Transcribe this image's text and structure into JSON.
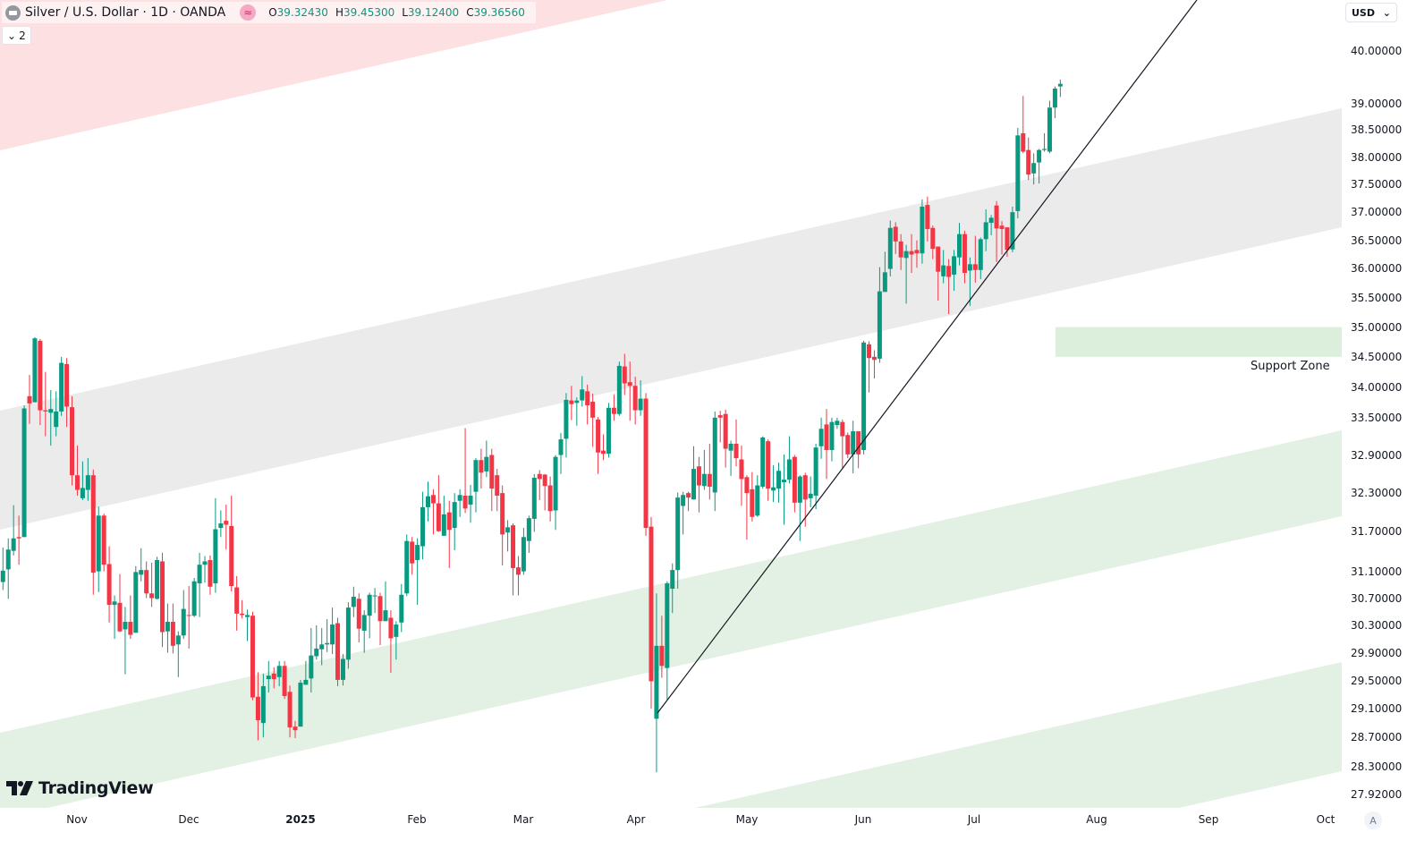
{
  "header": {
    "symbol_icon": "silver-bar-icon",
    "title": "Silver / U.S. Dollar · 1D · OANDA",
    "badge_icon": "approx-equal-icon",
    "badge_glyph": "≈",
    "ohlc": {
      "o_label": "O",
      "o": "39.32430",
      "h_label": "H",
      "h": "39.45300",
      "l_label": "L",
      "l": "39.12400",
      "c_label": "C",
      "c": "39.36560"
    },
    "collapse_glyph": "⌄",
    "collapse_count": "2"
  },
  "currency_selector": {
    "value": "USD",
    "chevron": "⌄"
  },
  "auto_scale_label": "A",
  "logo_text": "TradingView",
  "colors": {
    "up": "#089981",
    "down": "#f23645",
    "channel_gray": "#ebebeb",
    "channel_green": "#e3f1e4",
    "zone_red": "#fde0e2",
    "support_zone": "#dcefdc",
    "trendline": "#131722"
  },
  "chart_data": {
    "type": "candlestick",
    "symbol": "Silver / U.S. Dollar",
    "interval": "1D",
    "y_scale": "log",
    "grid": false,
    "price_ticks": [
      "40.00000",
      "39.00000",
      "38.50000",
      "38.00000",
      "37.50000",
      "37.00000",
      "36.50000",
      "36.00000",
      "35.50000",
      "35.00000",
      "34.50000",
      "34.00000",
      "33.50000",
      "32.90000",
      "32.30000",
      "31.70000",
      "31.10000",
      "30.70000",
      "30.30000",
      "29.90000",
      "29.50000",
      "29.10000",
      "28.70000",
      "28.30000",
      "27.92000"
    ],
    "time_ticks": [
      "Nov",
      "Dec",
      "2025",
      "Feb",
      "Mar",
      "Apr",
      "May",
      "Jun",
      "Jul",
      "Aug",
      "Sep",
      "Oct"
    ],
    "support_zone": {
      "label": "Support Zone",
      "low": 34.5,
      "high": 35.0
    },
    "candles_ohlc": [
      [
        30.94,
        31.46,
        30.82,
        31.11
      ],
      [
        31.13,
        31.6,
        30.69,
        31.43
      ],
      [
        31.41,
        32.11,
        31.34,
        31.6
      ],
      [
        31.62,
        31.95,
        31.2,
        31.6
      ],
      [
        31.62,
        33.7,
        31.62,
        33.65
      ],
      [
        33.85,
        34.2,
        33.4,
        33.73
      ],
      [
        33.75,
        34.83,
        33.75,
        34.81
      ],
      [
        34.77,
        34.8,
        33.38,
        33.62
      ],
      [
        33.62,
        34.25,
        33.2,
        33.6
      ],
      [
        33.58,
        33.95,
        33.05,
        33.64
      ],
      [
        33.35,
        33.93,
        33.2,
        33.6
      ],
      [
        33.6,
        34.5,
        33.53,
        34.4
      ],
      [
        34.38,
        34.48,
        33.35,
        33.68
      ],
      [
        33.67,
        33.85,
        32.42,
        32.58
      ],
      [
        32.58,
        33.05,
        32.26,
        32.35
      ],
      [
        32.22,
        32.8,
        32.19,
        32.38
      ],
      [
        32.35,
        32.85,
        32.18,
        32.58
      ],
      [
        32.58,
        32.67,
        30.75,
        31.08
      ],
      [
        31.1,
        32.09,
        30.79,
        31.95
      ],
      [
        31.95,
        31.98,
        31.1,
        31.2
      ],
      [
        31.21,
        31.48,
        30.34,
        30.6
      ],
      [
        30.6,
        30.74,
        30.1,
        30.65
      ],
      [
        30.63,
        31.06,
        30.2,
        30.21
      ],
      [
        30.24,
        30.57,
        29.59,
        30.35
      ],
      [
        30.35,
        30.74,
        30.1,
        30.16
      ],
      [
        30.19,
        31.18,
        30.19,
        31.09
      ],
      [
        31.05,
        31.45,
        30.95,
        31.12
      ],
      [
        31.12,
        31.25,
        30.7,
        30.77
      ],
      [
        30.77,
        31.23,
        30.57,
        30.7
      ],
      [
        30.69,
        31.32,
        30.68,
        31.27
      ],
      [
        31.25,
        31.38,
        29.98,
        30.2
      ],
      [
        30.21,
        30.62,
        29.9,
        30.35
      ],
      [
        30.35,
        30.62,
        29.89,
        30.0
      ],
      [
        30.02,
        30.21,
        29.55,
        30.15
      ],
      [
        30.15,
        30.82,
        30.1,
        30.54
      ],
      [
        30.45,
        30.88,
        29.96,
        30.44
      ],
      [
        30.44,
        31.0,
        30.42,
        30.95
      ],
      [
        30.92,
        31.38,
        30.42,
        31.2
      ],
      [
        31.2,
        31.33,
        30.93,
        31.25
      ],
      [
        31.27,
        31.34,
        30.75,
        30.87
      ],
      [
        30.92,
        32.22,
        30.78,
        31.74
      ],
      [
        31.76,
        32.03,
        31.62,
        31.83
      ],
      [
        31.87,
        32.12,
        31.43,
        31.81
      ],
      [
        31.79,
        32.26,
        30.8,
        30.88
      ],
      [
        30.86,
        31.03,
        30.22,
        30.47
      ],
      [
        30.47,
        30.67,
        30.4,
        30.45
      ],
      [
        30.42,
        30.53,
        30.07,
        30.45
      ],
      [
        30.44,
        30.5,
        29.22,
        29.26
      ],
      [
        29.27,
        29.62,
        28.66,
        28.94
      ],
      [
        28.9,
        29.6,
        28.7,
        29.42
      ],
      [
        29.52,
        29.78,
        29.33,
        29.57
      ],
      [
        29.6,
        29.69,
        29.39,
        29.52
      ],
      [
        29.55,
        29.78,
        29.42,
        29.71
      ],
      [
        29.71,
        29.78,
        29.24,
        29.28
      ],
      [
        29.34,
        29.43,
        28.7,
        28.84
      ],
      [
        28.85,
        28.93,
        28.69,
        28.8
      ],
      [
        28.85,
        29.51,
        28.85,
        29.47
      ],
      [
        29.44,
        29.78,
        29.44,
        29.51
      ],
      [
        29.53,
        30.26,
        29.33,
        29.86
      ],
      [
        29.85,
        30.3,
        29.8,
        29.96
      ],
      [
        29.95,
        30.26,
        29.72,
        30.02
      ],
      [
        30.02,
        30.39,
        29.91,
        30.04
      ],
      [
        30.02,
        30.56,
        29.88,
        30.31
      ],
      [
        30.33,
        30.41,
        29.42,
        29.51
      ],
      [
        29.51,
        29.88,
        29.43,
        29.81
      ],
      [
        29.8,
        30.64,
        29.67,
        30.56
      ],
      [
        30.57,
        30.87,
        30.42,
        30.72
      ],
      [
        30.69,
        30.77,
        30.05,
        30.25
      ],
      [
        30.22,
        30.52,
        29.9,
        30.45
      ],
      [
        30.44,
        30.78,
        30.11,
        30.75
      ],
      [
        30.73,
        30.85,
        30.48,
        30.74
      ],
      [
        30.73,
        30.78,
        30.01,
        30.36
      ],
      [
        30.36,
        30.95,
        30.36,
        30.52
      ],
      [
        30.41,
        30.52,
        29.61,
        30.11
      ],
      [
        30.13,
        30.36,
        29.8,
        30.31
      ],
      [
        30.34,
        30.91,
        30.2,
        30.75
      ],
      [
        30.77,
        31.66,
        30.73,
        31.56
      ],
      [
        31.55,
        31.62,
        31.05,
        31.22
      ],
      [
        31.27,
        31.6,
        30.6,
        31.5
      ],
      [
        31.48,
        32.32,
        31.28,
        32.08
      ],
      [
        32.08,
        32.48,
        31.86,
        32.25
      ],
      [
        32.27,
        32.36,
        31.66,
        32.14
      ],
      [
        32.14,
        32.58,
        31.7,
        31.71
      ],
      [
        31.64,
        32.26,
        31.64,
        31.97
      ],
      [
        32.0,
        32.18,
        31.15,
        31.73
      ],
      [
        31.76,
        32.3,
        31.42,
        32.16
      ],
      [
        32.18,
        32.36,
        31.93,
        32.27
      ],
      [
        32.26,
        33.33,
        31.99,
        32.06
      ],
      [
        32.12,
        32.43,
        31.84,
        32.26
      ],
      [
        32.32,
        32.85,
        32.0,
        32.82
      ],
      [
        32.82,
        33.0,
        32.37,
        32.62
      ],
      [
        32.64,
        33.13,
        32.55,
        32.87
      ],
      [
        32.9,
        33.0,
        32.02,
        32.37
      ],
      [
        32.58,
        32.68,
        32.02,
        32.26
      ],
      [
        32.3,
        32.42,
        31.19,
        31.66
      ],
      [
        31.69,
        31.88,
        31.4,
        31.77
      ],
      [
        31.8,
        31.83,
        30.74,
        31.15
      ],
      [
        31.16,
        31.33,
        30.74,
        31.05
      ],
      [
        31.1,
        31.76,
        31.05,
        31.62
      ],
      [
        31.56,
        31.95,
        31.38,
        31.91
      ],
      [
        31.9,
        32.6,
        31.7,
        32.54
      ],
      [
        32.6,
        32.66,
        32.19,
        32.52
      ],
      [
        32.59,
        32.6,
        32.03,
        32.41
      ],
      [
        32.42,
        32.56,
        31.86,
        32.02
      ],
      [
        32.03,
        32.9,
        31.73,
        32.87
      ],
      [
        32.9,
        33.25,
        32.6,
        33.15
      ],
      [
        33.16,
        33.9,
        32.86,
        33.79
      ],
      [
        33.78,
        34.02,
        33.46,
        33.72
      ],
      [
        33.74,
        33.83,
        33.37,
        33.78
      ],
      [
        33.78,
        34.18,
        33.68,
        33.96
      ],
      [
        33.93,
        34.04,
        33.39,
        33.7
      ],
      [
        33.76,
        33.89,
        33.03,
        33.5
      ],
      [
        33.47,
        33.51,
        32.6,
        32.94
      ],
      [
        32.97,
        33.23,
        32.82,
        32.92
      ],
      [
        32.92,
        33.74,
        32.86,
        33.66
      ],
      [
        33.66,
        33.88,
        33.45,
        33.56
      ],
      [
        33.56,
        34.42,
        33.53,
        34.35
      ],
      [
        34.34,
        34.55,
        33.87,
        34.06
      ],
      [
        34.08,
        34.42,
        33.45,
        34.02
      ],
      [
        34.02,
        34.17,
        33.39,
        33.62
      ],
      [
        33.62,
        34.11,
        33.53,
        33.81
      ],
      [
        33.81,
        33.9,
        31.64,
        31.76
      ],
      [
        31.78,
        31.93,
        29.1,
        29.49
      ],
      [
        28.96,
        30.77,
        28.22,
        30.0
      ],
      [
        30.0,
        30.44,
        29.54,
        29.71
      ],
      [
        29.68,
        30.95,
        29.23,
        30.92
      ],
      [
        30.84,
        31.22,
        30.48,
        31.12
      ],
      [
        31.12,
        32.31,
        30.84,
        32.23
      ],
      [
        32.1,
        32.32,
        31.66,
        32.27
      ],
      [
        32.3,
        32.32,
        32.02,
        32.23
      ],
      [
        32.2,
        33.04,
        32.2,
        32.68
      ],
      [
        32.72,
        32.87,
        32.0,
        32.42
      ],
      [
        32.41,
        32.98,
        32.35,
        32.6
      ],
      [
        32.6,
        33.08,
        32.2,
        32.4
      ],
      [
        32.31,
        33.6,
        32.02,
        33.5
      ],
      [
        33.54,
        33.61,
        33.1,
        33.5
      ],
      [
        33.56,
        33.63,
        32.7,
        33.0
      ],
      [
        32.97,
        33.13,
        32.57,
        33.08
      ],
      [
        33.08,
        33.47,
        32.72,
        32.85
      ],
      [
        32.83,
        33.05,
        32.1,
        32.52
      ],
      [
        32.55,
        32.58,
        31.58,
        32.3
      ],
      [
        32.36,
        32.63,
        31.86,
        31.93
      ],
      [
        31.95,
        32.58,
        31.93,
        32.42
      ],
      [
        32.4,
        33.2,
        32.37,
        33.18
      ],
      [
        33.12,
        33.15,
        32.18,
        32.37
      ],
      [
        32.34,
        32.74,
        32.16,
        32.39
      ],
      [
        32.37,
        32.78,
        32.15,
        32.65
      ],
      [
        32.47,
        32.91,
        31.81,
        32.51
      ],
      [
        32.51,
        33.2,
        32.45,
        32.83
      ],
      [
        32.87,
        32.9,
        32.0,
        32.15
      ],
      [
        32.15,
        32.58,
        31.56,
        32.56
      ],
      [
        32.58,
        32.62,
        31.78,
        32.2
      ],
      [
        32.22,
        32.56,
        32.08,
        32.29
      ],
      [
        32.26,
        33.08,
        32.05,
        33.02
      ],
      [
        33.04,
        33.5,
        32.84,
        33.32
      ],
      [
        33.39,
        33.64,
        32.52,
        32.98
      ],
      [
        32.98,
        33.5,
        32.8,
        33.43
      ],
      [
        33.38,
        33.5,
        33.32,
        33.45
      ],
      [
        33.43,
        33.47,
        32.69,
        33.2
      ],
      [
        33.22,
        33.26,
        32.85,
        32.91
      ],
      [
        32.91,
        33.45,
        32.61,
        33.28
      ],
      [
        33.28,
        33.28,
        32.69,
        32.91
      ],
      [
        32.98,
        34.77,
        32.91,
        34.74
      ],
      [
        34.71,
        34.76,
        33.91,
        34.48
      ],
      [
        34.5,
        34.61,
        34.14,
        34.45
      ],
      [
        34.47,
        36.03,
        34.4,
        35.61
      ],
      [
        35.6,
        36.3,
        35.6,
        35.94
      ],
      [
        36.0,
        36.85,
        35.87,
        36.72
      ],
      [
        36.74,
        36.82,
        36.26,
        36.48
      ],
      [
        36.48,
        36.61,
        35.98,
        36.2
      ],
      [
        36.19,
        36.42,
        35.4,
        36.31
      ],
      [
        36.31,
        36.61,
        35.93,
        36.25
      ],
      [
        36.33,
        36.5,
        36.02,
        36.27
      ],
      [
        36.27,
        37.23,
        36.09,
        37.1
      ],
      [
        37.13,
        37.28,
        36.48,
        36.7
      ],
      [
        36.72,
        36.76,
        36.17,
        36.35
      ],
      [
        36.39,
        36.39,
        35.45,
        35.95
      ],
      [
        35.87,
        36.33,
        35.75,
        36.06
      ],
      [
        36.05,
        36.17,
        35.22,
        35.86
      ],
      [
        35.9,
        36.33,
        35.62,
        36.22
      ],
      [
        36.2,
        36.81,
        36.06,
        36.61
      ],
      [
        36.61,
        36.67,
        35.75,
        35.93
      ],
      [
        35.97,
        36.2,
        35.36,
        36.08
      ],
      [
        36.08,
        36.58,
        35.76,
        35.98
      ],
      [
        35.98,
        36.55,
        35.82,
        36.52
      ],
      [
        36.52,
        37.05,
        36.31,
        36.82
      ],
      [
        36.81,
        36.95,
        36.59,
        36.9
      ],
      [
        37.12,
        37.2,
        36.12,
        36.71
      ],
      [
        36.76,
        36.84,
        36.25,
        36.7
      ],
      [
        36.73,
        36.73,
        36.21,
        36.33
      ],
      [
        36.34,
        37.1,
        36.29,
        37.0
      ],
      [
        37.02,
        38.54,
        36.89,
        38.4
      ],
      [
        38.44,
        39.14,
        38.07,
        38.1
      ],
      [
        38.13,
        38.36,
        37.58,
        37.68
      ],
      [
        37.7,
        38.07,
        37.5,
        37.89
      ],
      [
        37.9,
        38.15,
        37.52,
        38.13
      ],
      [
        38.13,
        38.44,
        38.1,
        38.15
      ],
      [
        38.1,
        39.05,
        38.07,
        38.92
      ],
      [
        38.92,
        39.32,
        38.72,
        39.28
      ],
      [
        39.32,
        39.45,
        39.12,
        39.37
      ]
    ]
  }
}
